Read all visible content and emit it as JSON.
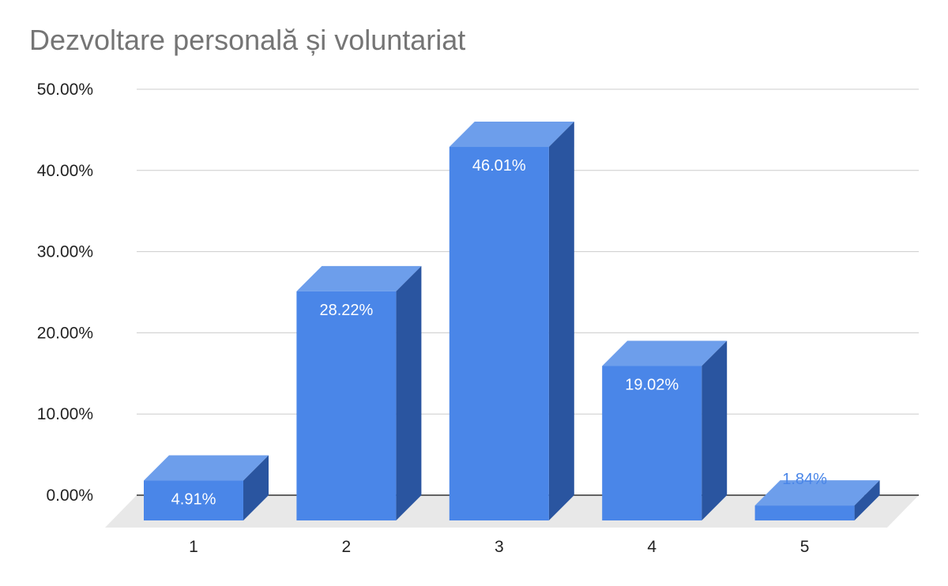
{
  "chart_data": {
    "type": "bar",
    "title": "Dezvoltare personală și voluntariat",
    "categories": [
      "1",
      "2",
      "3",
      "4",
      "5"
    ],
    "values": [
      4.91,
      28.22,
      46.01,
      19.02,
      1.84
    ],
    "data_labels": [
      "4.91%",
      "28.22%",
      "46.01%",
      "19.02%",
      "1.84%"
    ],
    "yticks": [
      "0.00%",
      "10.00%",
      "20.00%",
      "30.00%",
      "40.00%",
      "50.00%"
    ],
    "ylim": [
      0,
      50
    ],
    "grid": true,
    "style": "3d",
    "legend": "none",
    "colors": {
      "front": "#4a86e8",
      "top": "#6d9eeb",
      "side": "#2a55a0",
      "floor": "#e8e8e8",
      "grid": "#cccccc",
      "axis": "#333333",
      "label_inside": "#ffffff",
      "label_outside": "#4a86e8"
    }
  }
}
